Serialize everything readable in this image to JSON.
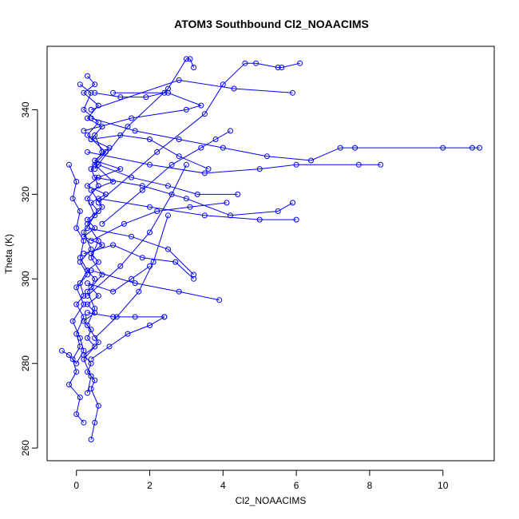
{
  "chart_data": {
    "type": "line",
    "title": "ATOM3 Southbound Cl2_NOAACIMS",
    "xlabel": "Cl2_NOAACIMS",
    "ylabel": "Theta (K)",
    "xlim": [
      -0.8,
      11.4
    ],
    "ylim": [
      257,
      355
    ],
    "xticks": [
      0,
      2,
      4,
      6,
      8,
      10
    ],
    "yticks": [
      260,
      280,
      300,
      320,
      340
    ],
    "grid": false,
    "legend": "none",
    "series_color": "#0000ff",
    "marker": "open-circle",
    "series": [
      {
        "segments": [
          [
            [
              0.3,
              348
            ],
            [
              0.5,
              346
            ],
            [
              0.2,
              344
            ],
            [
              0.6,
              341
            ],
            [
              0.3,
              338
            ],
            [
              0.7,
              336
            ],
            [
              0.4,
              333
            ],
            [
              0.9,
              331
            ],
            [
              0.5,
              328
            ],
            [
              1.2,
              326
            ],
            [
              0.6,
              324
            ],
            [
              0.3,
              322
            ],
            [
              0.8,
              320
            ],
            [
              0.4,
              318
            ],
            [
              0.6,
              316
            ],
            [
              0.3,
              314
            ],
            [
              0.5,
              312
            ],
            [
              0.2,
              310
            ],
            [
              0.7,
              308
            ],
            [
              0.4,
              306
            ],
            [
              0.6,
              304
            ],
            [
              0.3,
              302
            ],
            [
              0.5,
              300
            ],
            [
              0.4,
              298
            ],
            [
              0.6,
              296
            ],
            [
              0.3,
              294
            ],
            [
              0.5,
              292
            ],
            [
              0.2,
              290
            ],
            [
              0.4,
              288
            ],
            [
              0.3,
              286
            ],
            [
              0.5,
              284
            ],
            [
              0.2,
              282
            ],
            [
              0.4,
              280
            ],
            [
              0.3,
              278
            ],
            [
              0.5,
              276
            ],
            [
              0.4,
              274
            ],
            [
              0.6,
              270
            ],
            [
              0.5,
              266
            ],
            [
              0.4,
              262
            ]
          ],
          [
            [
              0.1,
              346
            ],
            [
              0.4,
              344
            ],
            [
              0.2,
              340
            ],
            [
              0.6,
              337
            ],
            [
              0.3,
              334
            ],
            [
              0.8,
              330
            ],
            [
              0.5,
              327
            ],
            [
              1.0,
              323
            ],
            [
              0.4,
              321
            ],
            [
              0.7,
              317
            ],
            [
              0.3,
              313
            ],
            [
              0.6,
              309
            ],
            [
              0.4,
              305
            ],
            [
              0.7,
              301
            ],
            [
              0.3,
              297
            ],
            [
              0.5,
              293
            ],
            [
              0.3,
              289
            ],
            [
              0.6,
              285
            ],
            [
              0.2,
              281
            ],
            [
              0.4,
              277
            ],
            [
              0.3,
              273
            ]
          ],
          [
            [
              -0.4,
              283
            ],
            [
              -0.2,
              282
            ],
            [
              0.0,
              280
            ],
            [
              0.2,
              283
            ],
            [
              0.1,
              286
            ],
            [
              -0.1,
              290
            ],
            [
              0.2,
              294
            ],
            [
              0.0,
              298
            ],
            [
              0.3,
              301
            ],
            [
              0.1,
              304
            ],
            [
              0.4,
              307
            ],
            [
              0.2,
              311
            ],
            [
              0.5,
              315
            ],
            [
              0.3,
              319
            ],
            [
              0.6,
              322
            ],
            [
              0.4,
              326
            ],
            [
              0.7,
              330
            ],
            [
              0.5,
              334
            ]
          ],
          [
            [
              -0.2,
              327
            ],
            [
              0.0,
              323
            ],
            [
              -0.1,
              319
            ],
            [
              0.1,
              316
            ],
            [
              0.0,
              312
            ],
            [
              0.2,
              309
            ],
            [
              0.1,
              305
            ],
            [
              0.3,
              302
            ],
            [
              0.1,
              299
            ],
            [
              0.2,
              296
            ],
            [
              0.0,
              294
            ],
            [
              0.2,
              291
            ],
            [
              0.0,
              287
            ],
            [
              0.1,
              284
            ],
            [
              -0.1,
              281
            ],
            [
              0.0,
              278
            ],
            [
              -0.2,
              275
            ],
            [
              0.1,
              272
            ],
            [
              0.0,
              268
            ],
            [
              0.2,
              266
            ]
          ]
        ]
      },
      {
        "segments": [
          [
            [
              0.4,
              338
            ],
            [
              1.6,
              335
            ],
            [
              2.8,
              333
            ],
            [
              4.0,
              331
            ],
            [
              5.2,
              329
            ],
            [
              6.4,
              328
            ],
            [
              7.2,
              331
            ],
            [
              7.6,
              331
            ],
            [
              10.0,
              331
            ],
            [
              10.8,
              331
            ],
            [
              11.0,
              331
            ]
          ],
          [
            [
              0.3,
              330
            ],
            [
              2.0,
              327
            ],
            [
              3.5,
              325
            ],
            [
              5.0,
              326
            ],
            [
              6.0,
              327
            ],
            [
              7.7,
              327
            ],
            [
              8.3,
              327
            ]
          ],
          [
            [
              0.2,
              335
            ],
            [
              1.5,
              338
            ],
            [
              3.0,
              340
            ],
            [
              3.4,
              341
            ],
            [
              2.5,
              344
            ],
            [
              1.0,
              344
            ]
          ],
          [
            [
              0.5,
              324
            ],
            [
              1.8,
              322
            ],
            [
              3.0,
              319
            ],
            [
              4.2,
              315
            ],
            [
              5.5,
              316
            ],
            [
              5.9,
              318
            ]
          ],
          [
            [
              0.6,
              319
            ],
            [
              2.0,
              317
            ],
            [
              3.5,
              315
            ],
            [
              5.0,
              314
            ],
            [
              6.0,
              314
            ]
          ],
          [
            [
              0.3,
              312
            ],
            [
              1.5,
              310
            ],
            [
              2.5,
              307
            ],
            [
              3.2,
              301
            ]
          ],
          [
            [
              0.4,
              302
            ],
            [
              1.6,
              299
            ],
            [
              2.8,
              297
            ],
            [
              3.9,
              295
            ]
          ],
          [
            [
              0.3,
              292
            ],
            [
              1.0,
              291
            ],
            [
              1.6,
              291
            ],
            [
              2.4,
              291
            ]
          ],
          [
            [
              0.5,
              326
            ],
            [
              1.4,
              336
            ],
            [
              2.5,
              345
            ],
            [
              3.0,
              352
            ],
            [
              3.1,
              352
            ],
            [
              3.2,
              350
            ]
          ],
          [
            [
              0.6,
              318
            ],
            [
              2.2,
              330
            ],
            [
              3.5,
              339
            ],
            [
              4.0,
              346
            ],
            [
              4.6,
              351
            ],
            [
              4.9,
              351
            ],
            [
              5.5,
              350
            ],
            [
              5.6,
              350
            ],
            [
              6.1,
              351
            ]
          ],
          [
            [
              0.4,
              340
            ],
            [
              2.8,
              347
            ],
            [
              4.3,
              345
            ],
            [
              5.9,
              344
            ]
          ],
          [
            [
              0.7,
              313
            ],
            [
              1.8,
              321
            ],
            [
              2.6,
              327
            ],
            [
              3.4,
              331
            ],
            [
              3.8,
              333
            ],
            [
              4.2,
              335
            ]
          ],
          [
            [
              0.3,
              296
            ],
            [
              1.2,
              303
            ],
            [
              2.0,
              311
            ],
            [
              2.6,
              320
            ],
            [
              3.0,
              327
            ]
          ],
          [
            [
              0.5,
              286
            ],
            [
              1.1,
              291
            ],
            [
              1.7,
              297
            ],
            [
              2.1,
              304
            ],
            [
              2.5,
              315
            ]
          ],
          [
            [
              0.4,
              309
            ],
            [
              1.3,
              313
            ],
            [
              2.2,
              316
            ],
            [
              3.1,
              317
            ],
            [
              4.1,
              318
            ]
          ],
          [
            [
              0.6,
              327
            ],
            [
              1.5,
              324
            ],
            [
              2.5,
              322
            ],
            [
              3.3,
              320
            ],
            [
              4.4,
              320
            ]
          ],
          [
            [
              0.2,
              306
            ],
            [
              1.0,
              308
            ],
            [
              1.8,
              305
            ],
            [
              2.7,
              304
            ],
            [
              3.2,
              300
            ]
          ],
          [
            [
              0.4,
              281
            ],
            [
              0.9,
              284
            ],
            [
              1.4,
              287
            ],
            [
              2.0,
              289
            ],
            [
              2.4,
              291
            ]
          ],
          [
            [
              0.5,
              344
            ],
            [
              1.2,
              343
            ],
            [
              1.9,
              343
            ],
            [
              2.4,
              344
            ]
          ],
          [
            [
              0.3,
              299
            ],
            [
              1.0,
              297
            ],
            [
              1.5,
              300
            ],
            [
              2.0,
              303
            ]
          ],
          [
            [
              0.4,
              333
            ],
            [
              1.2,
              334
            ],
            [
              2.0,
              333
            ],
            [
              2.8,
              329
            ],
            [
              3.6,
              326
            ]
          ]
        ]
      }
    ]
  }
}
